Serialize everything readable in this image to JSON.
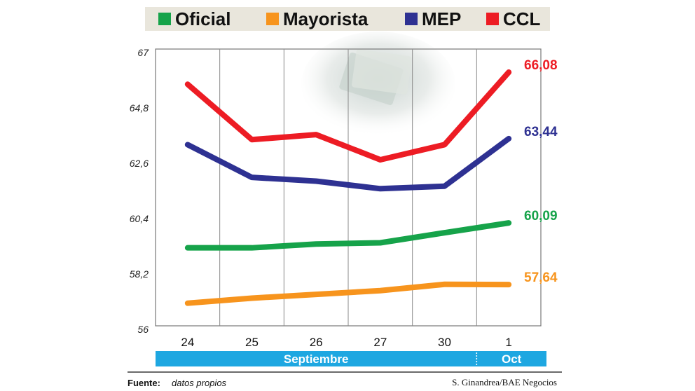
{
  "colors": {
    "Oficial": "#16a34a",
    "Mayorista": "#f7941d",
    "MEP": "#2e3192",
    "CCL": "#ed1c24",
    "band": "#1ea7e1"
  },
  "chart_data": {
    "type": "line",
    "categories": [
      "24",
      "25",
      "26",
      "27",
      "30",
      "1"
    ],
    "ylim": [
      56,
      67
    ],
    "yticks": [
      "56",
      "58,2",
      "60,4",
      "62,6",
      "64,8",
      "67"
    ],
    "ytick_values": [
      56,
      58.2,
      60.4,
      62.6,
      64.8,
      67
    ],
    "grid": "vertical",
    "legend": "top",
    "series": [
      {
        "name": "Oficial",
        "values": [
          59.1,
          59.1,
          59.25,
          59.3,
          59.7,
          60.09
        ],
        "end_label": "60,09"
      },
      {
        "name": "Mayorista",
        "values": [
          56.9,
          57.1,
          57.25,
          57.4,
          57.65,
          57.64
        ],
        "end_label": "57,64"
      },
      {
        "name": "MEP",
        "values": [
          63.2,
          61.9,
          61.75,
          61.45,
          61.55,
          63.44
        ],
        "end_label": "63,44"
      },
      {
        "name": "CCL",
        "values": [
          65.6,
          63.4,
          63.6,
          62.6,
          63.2,
          66.08
        ],
        "end_label": "66,08"
      }
    ],
    "months": [
      {
        "label": "Septiembre",
        "span": [
          0,
          4
        ]
      },
      {
        "label": "Oct",
        "span": [
          5,
          5
        ]
      }
    ]
  },
  "footer": {
    "source_label": "Fuente:",
    "source_text": "datos propios",
    "credit": "S. Ginandrea/BAE Negocios"
  }
}
